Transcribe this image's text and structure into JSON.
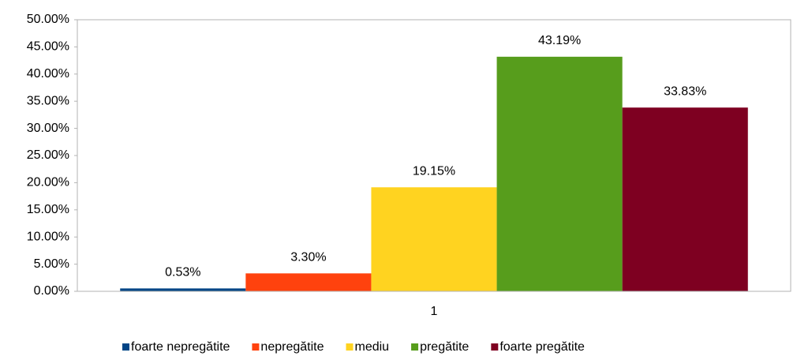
{
  "chart_data": {
    "type": "bar",
    "categories": [
      "1"
    ],
    "series": [
      {
        "name": "foarte nepregătite",
        "color": "#004586",
        "values": [
          0.53
        ],
        "value_labels": [
          "0.53%"
        ]
      },
      {
        "name": "nepregătite",
        "color": "#ff420e",
        "values": [
          3.3
        ],
        "value_labels": [
          "3.30%"
        ]
      },
      {
        "name": "mediu",
        "color": "#ffd320",
        "values": [
          19.15
        ],
        "value_labels": [
          "19.15%"
        ]
      },
      {
        "name": "pregătite",
        "color": "#579d1c",
        "values": [
          43.19
        ],
        "value_labels": [
          "43.19%"
        ]
      },
      {
        "name": "foarte pregătite",
        "color": "#7e0021",
        "values": [
          33.83
        ],
        "value_labels": [
          "33.83%"
        ]
      }
    ],
    "ylim": [
      0,
      50
    ],
    "yticks": [
      {
        "value": 0,
        "label": "0.00%"
      },
      {
        "value": 5,
        "label": "5.00%"
      },
      {
        "value": 10,
        "label": "10.00%"
      },
      {
        "value": 15,
        "label": "15.00%"
      },
      {
        "value": 20,
        "label": "20.00%"
      },
      {
        "value": 25,
        "label": "25.00%"
      },
      {
        "value": 30,
        "label": "30.00%"
      },
      {
        "value": 35,
        "label": "35.00%"
      },
      {
        "value": 40,
        "label": "40.00%"
      },
      {
        "value": 45,
        "label": "45.00%"
      },
      {
        "value": 50,
        "label": "50.00%"
      }
    ],
    "legend": "bottom"
  }
}
